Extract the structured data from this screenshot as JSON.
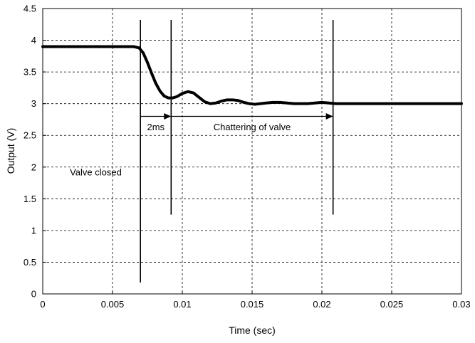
{
  "chart_data": {
    "type": "line",
    "title": "",
    "xlabel": "Time (sec)",
    "ylabel": "Output (V)",
    "xlim": [
      0,
      0.03
    ],
    "ylim": [
      0,
      4.5
    ],
    "grid": true,
    "x_ticks": [
      0,
      0.005,
      0.01,
      0.015,
      0.02,
      0.025,
      0.03
    ],
    "x_tick_labels": [
      "0",
      "0.005",
      "0.01",
      "0.015",
      "0.02",
      "0.025",
      "0.03"
    ],
    "y_ticks": [
      0,
      0.5,
      1,
      1.5,
      2,
      2.5,
      3,
      3.5,
      4,
      4.5
    ],
    "y_tick_labels": [
      "0",
      "0.5",
      "1",
      "1.5",
      "2",
      "2.5",
      "3",
      "3.5",
      "4",
      "4.5"
    ],
    "series": [
      {
        "color": "#000000",
        "x": [
          0,
          0.001,
          0.002,
          0.003,
          0.004,
          0.005,
          0.006,
          0.0065,
          0.0069,
          0.0072,
          0.0075,
          0.0078,
          0.0081,
          0.0084,
          0.0087,
          0.009,
          0.0093,
          0.0096,
          0.01,
          0.0104,
          0.0108,
          0.0112,
          0.0116,
          0.012,
          0.0124,
          0.0128,
          0.0132,
          0.0136,
          0.014,
          0.0144,
          0.0148,
          0.0152,
          0.0156,
          0.016,
          0.0165,
          0.017,
          0.0175,
          0.018,
          0.0185,
          0.019,
          0.0195,
          0.02,
          0.0205,
          0.021,
          0.022,
          0.023,
          0.024,
          0.025,
          0.026,
          0.027,
          0.028,
          0.029,
          0.03
        ],
        "y": [
          3.9,
          3.9,
          3.9,
          3.9,
          3.9,
          3.9,
          3.9,
          3.9,
          3.88,
          3.8,
          3.65,
          3.48,
          3.32,
          3.2,
          3.12,
          3.09,
          3.09,
          3.11,
          3.16,
          3.19,
          3.17,
          3.1,
          3.03,
          3.0,
          3.01,
          3.04,
          3.06,
          3.06,
          3.05,
          3.02,
          3.0,
          2.99,
          3.0,
          3.01,
          3.02,
          3.02,
          3.01,
          3.0,
          3.0,
          3.0,
          3.01,
          3.02,
          3.01,
          3.0,
          3.0,
          3.0,
          3.0,
          3.0,
          3.0,
          3.0,
          3.0,
          3.0,
          3.0
        ]
      }
    ],
    "vertical_markers": [
      {
        "x": 0.007,
        "y_from": 0.18,
        "y_to": 4.32
      },
      {
        "x": 0.0092,
        "y_from": 1.25,
        "y_to": 4.32
      },
      {
        "x": 0.0208,
        "y_from": 1.25,
        "y_to": 4.32
      }
    ],
    "arrows": [
      {
        "x_from": 0.007,
        "x_to": 0.0092,
        "y": 2.8
      },
      {
        "x_from": 0.0092,
        "x_to": 0.0208,
        "y": 2.8
      }
    ],
    "annotations": [
      {
        "text": "2ms",
        "x": 0.0081,
        "y": 2.58
      },
      {
        "text": "Chattering of valve",
        "x": 0.015,
        "y": 2.58
      },
      {
        "text": "Valve closed",
        "x": 0.0038,
        "y": 1.87
      }
    ]
  }
}
